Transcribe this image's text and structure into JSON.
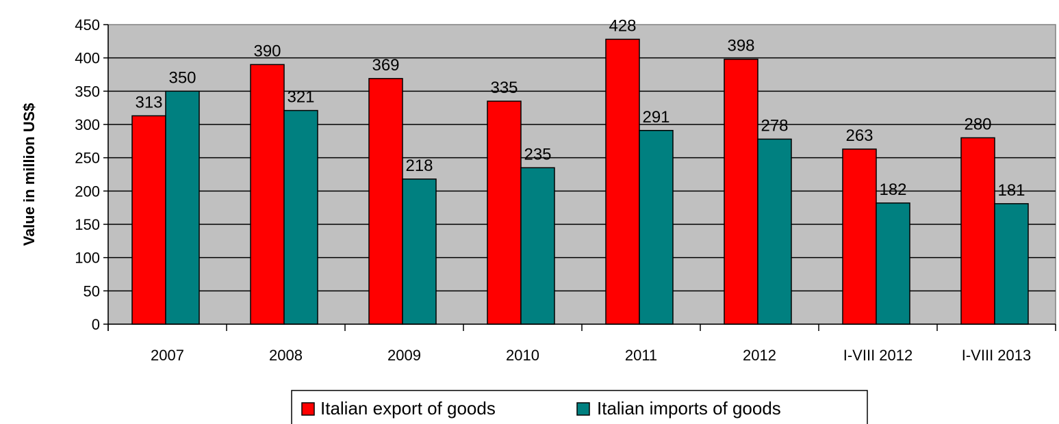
{
  "chart_data": {
    "type": "bar",
    "title": "",
    "xlabel": "",
    "ylabel": "Value in million US$",
    "ylim": [
      0,
      450
    ],
    "yticks": [
      0,
      50,
      100,
      150,
      200,
      250,
      300,
      350,
      400,
      450
    ],
    "grid": true,
    "legend_position": "bottom",
    "categories": [
      "2007",
      "2008",
      "2009",
      "2010",
      "2011",
      "2012",
      "I-VIII 2012",
      "I-VIII 2013"
    ],
    "series": [
      {
        "name": "Italian export of goods",
        "color": "#ff0000",
        "values": [
          313,
          390,
          369,
          335,
          428,
          398,
          263,
          280
        ]
      },
      {
        "name": "Italian imports of goods",
        "color": "#008080",
        "values": [
          350,
          321,
          218,
          235,
          291,
          278,
          182,
          181
        ]
      }
    ],
    "plot_background": "#c0c0c0"
  }
}
